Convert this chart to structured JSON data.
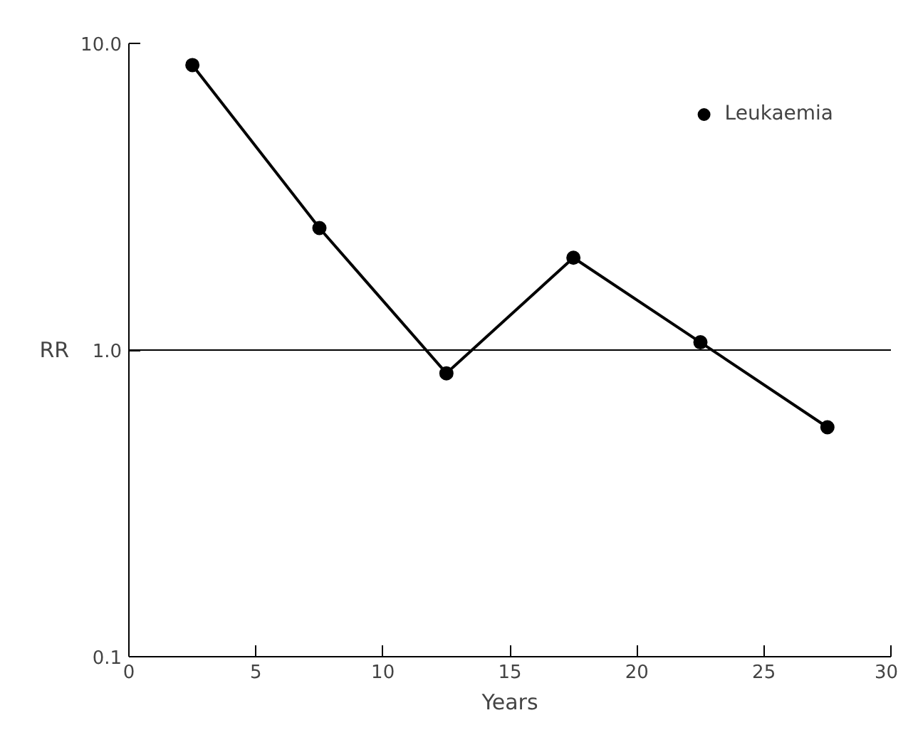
{
  "chart_data": {
    "type": "line",
    "xlabel": "Years",
    "ylabel": "RR",
    "log": "y",
    "x": [
      2.5,
      7.5,
      12.5,
      17.5,
      22.5,
      27.5
    ],
    "series": [
      {
        "name": "Leukaemia",
        "color": "#000000",
        "values": [
          8.5,
          2.5,
          0.84,
          2.0,
          1.06,
          0.56
        ]
      }
    ],
    "xlim": [
      0,
      30
    ],
    "xticks": [
      0,
      5,
      10,
      15,
      20,
      25,
      30
    ],
    "ylim": [
      0.1,
      10
    ],
    "yticks": [
      {
        "value": 0.1,
        "label": "0.1"
      },
      {
        "value": 1,
        "label": "1.0"
      },
      {
        "value": 10,
        "label": "10.0"
      }
    ],
    "ref_lines": [
      {
        "axis": "y",
        "value": 1,
        "label": null,
        "color": "#000000"
      }
    ],
    "marker": "circle",
    "line_style": "solid",
    "grid": false,
    "legend": "top right"
  }
}
